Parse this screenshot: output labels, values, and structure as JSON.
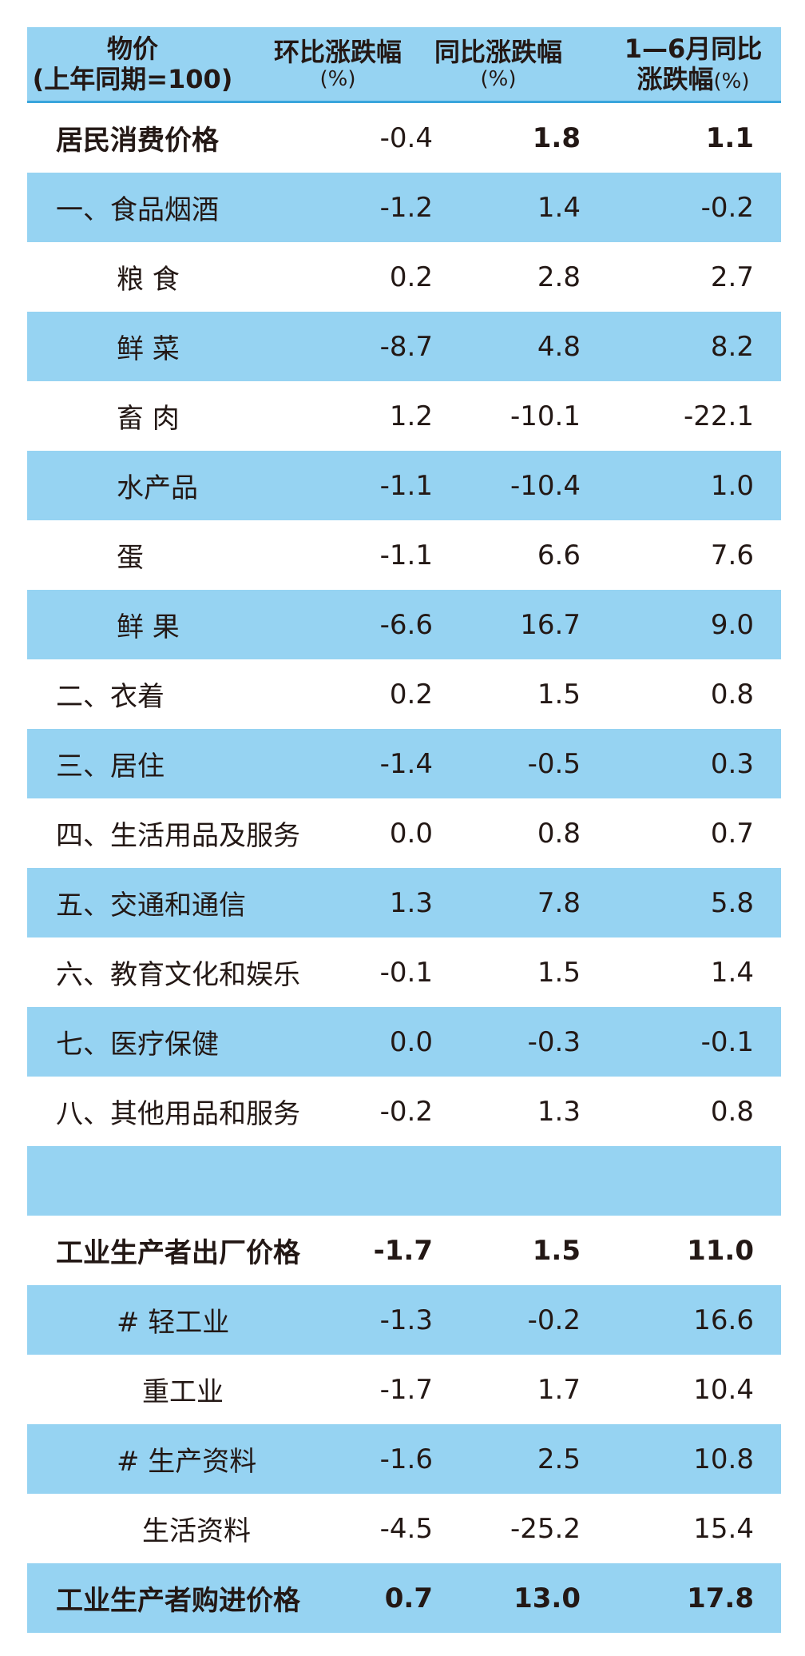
{
  "headers": {
    "col1_line1": "物价",
    "col1_line2": "(上年同期=100)",
    "col2_line1": "环比涨跌幅",
    "col2_line2": "(%)",
    "col3_line1": "同比涨跌幅",
    "col3_line2": "(%)",
    "col4_line1": "1—6月同比",
    "col4_line2": "涨跌幅",
    "col4_pct": "(%)"
  },
  "rows": [
    {
      "name": "居民消费价格",
      "mom": "-0.4",
      "yoy": "1.8",
      "ytd": "1.1"
    },
    {
      "name": "一、食品烟酒",
      "mom": "-1.2",
      "yoy": "1.4",
      "ytd": "-0.2"
    },
    {
      "name": "粮 食",
      "mom": "0.2",
      "yoy": "2.8",
      "ytd": "2.7"
    },
    {
      "name": "鲜 菜",
      "mom": "-8.7",
      "yoy": "4.8",
      "ytd": "8.2"
    },
    {
      "name": "畜 肉",
      "mom": "1.2",
      "yoy": "-10.1",
      "ytd": "-22.1"
    },
    {
      "name": "水产品",
      "mom": "-1.1",
      "yoy": "-10.4",
      "ytd": "1.0"
    },
    {
      "name": "蛋",
      "mom": "-1.1",
      "yoy": "6.6",
      "ytd": "7.6"
    },
    {
      "name": "鲜 果",
      "mom": "-6.6",
      "yoy": "16.7",
      "ytd": "9.0"
    },
    {
      "name": "二、衣着",
      "mom": "0.2",
      "yoy": "1.5",
      "ytd": "0.8"
    },
    {
      "name": "三、居住",
      "mom": "-1.4",
      "yoy": "-0.5",
      "ytd": "0.3"
    },
    {
      "name": "四、生活用品及服务",
      "mom": "0.0",
      "yoy": "0.8",
      "ytd": "0.7"
    },
    {
      "name": "五、交通和通信",
      "mom": "1.3",
      "yoy": "7.8",
      "ytd": "5.8"
    },
    {
      "name": "六、教育文化和娱乐",
      "mom": "-0.1",
      "yoy": "1.5",
      "ytd": "1.4"
    },
    {
      "name": "七、医疗保健",
      "mom": "0.0",
      "yoy": "-0.3",
      "ytd": "-0.1"
    },
    {
      "name": "八、其他用品和服务",
      "mom": "-0.2",
      "yoy": "1.3",
      "ytd": "0.8"
    },
    {
      "name": "",
      "mom": "",
      "yoy": "",
      "ytd": ""
    },
    {
      "name": "工业生产者出厂价格",
      "mom": "-1.7",
      "yoy": "1.5",
      "ytd": "11.0"
    },
    {
      "name": "# 轻工业",
      "mom": "-1.3",
      "yoy": "-0.2",
      "ytd": "16.6"
    },
    {
      "name": "重工业",
      "mom": "-1.7",
      "yoy": "1.7",
      "ytd": "10.4"
    },
    {
      "name": "# 生产资料",
      "mom": "-1.6",
      "yoy": "2.5",
      "ytd": "10.8"
    },
    {
      "name": "生活资料",
      "mom": "-4.5",
      "yoy": "-25.2",
      "ytd": "15.4"
    },
    {
      "name": "工业生产者购进价格",
      "mom": "0.7",
      "yoy": "13.0",
      "ytd": "17.8"
    }
  ]
}
